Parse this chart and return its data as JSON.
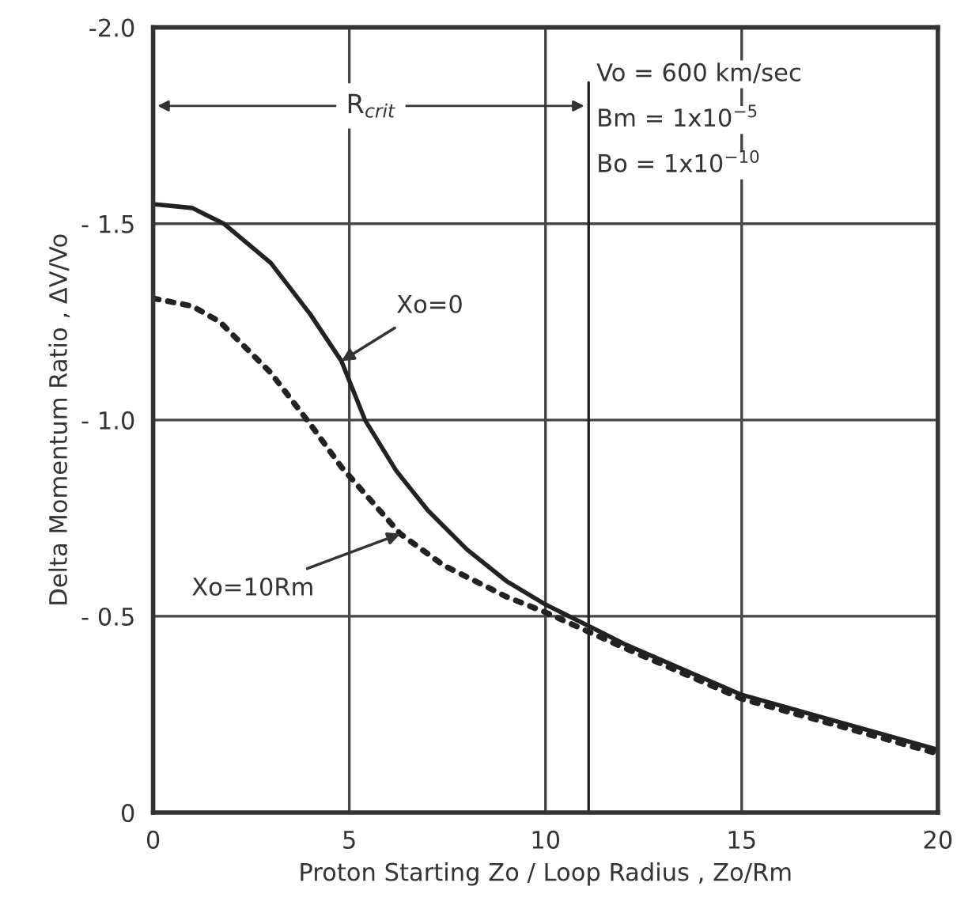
{
  "chart_data": {
    "type": "line",
    "xlabel": "Proton Starting Zo / Loop Radius , Zo/Rm",
    "ylabel": "Delta Momentum Ratio , ΔV/Vo",
    "xlim": [
      0,
      20
    ],
    "xticks": [
      0,
      5,
      10,
      15,
      20
    ],
    "ylim": [
      0,
      -2.0
    ],
    "yticks": [
      {
        "value": 0,
        "label": "0"
      },
      {
        "value": -0.5,
        "label": "- 0.5"
      },
      {
        "value": -1.0,
        "label": "- 1.0"
      },
      {
        "value": -1.5,
        "label": "- 1.5"
      },
      {
        "value": -2.0,
        "label": "-2.0"
      }
    ],
    "grid": true,
    "series": [
      {
        "color": "#222222",
        "line_style": "solid",
        "x": [
          0,
          1,
          1.8,
          3,
          4,
          4.8,
          5.4,
          6.2,
          7,
          8,
          9,
          10,
          12,
          15,
          17.5,
          20
        ],
        "values": [
          -1.55,
          -1.54,
          -1.5,
          -1.4,
          -1.27,
          -1.15,
          -1.0,
          -0.87,
          -0.77,
          -0.67,
          -0.59,
          -0.53,
          -0.43,
          -0.3,
          -0.23,
          -0.16
        ]
      },
      {
        "color": "#222222",
        "line_style": "dotted",
        "x": [
          0,
          1,
          1.7,
          3,
          4,
          4.8,
          6.3,
          7.4,
          8,
          9,
          10,
          12,
          15,
          17.5,
          20
        ],
        "values": [
          -1.31,
          -1.29,
          -1.25,
          -1.12,
          -0.99,
          -0.88,
          -0.71,
          -0.63,
          -0.6,
          -0.55,
          -0.51,
          -0.42,
          -0.29,
          -0.22,
          -0.15
        ]
      }
    ],
    "ref_lines": [
      {
        "axis": "x",
        "value": 11.1,
        "label": "R$_{crit}$",
        "color": "#222222",
        "line_style": "solid"
      }
    ],
    "annotations": [
      {
        "text": "Xo=0",
        "x": 4.8,
        "y": -1.15
      },
      {
        "text": "Xo=10Rm",
        "x": 6.3,
        "y": -0.71
      },
      "Vo = 600 km/sec",
      "Bm = 1x10$^{−5}$",
      "Bo = 1x10$^{−10}$"
    ]
  }
}
